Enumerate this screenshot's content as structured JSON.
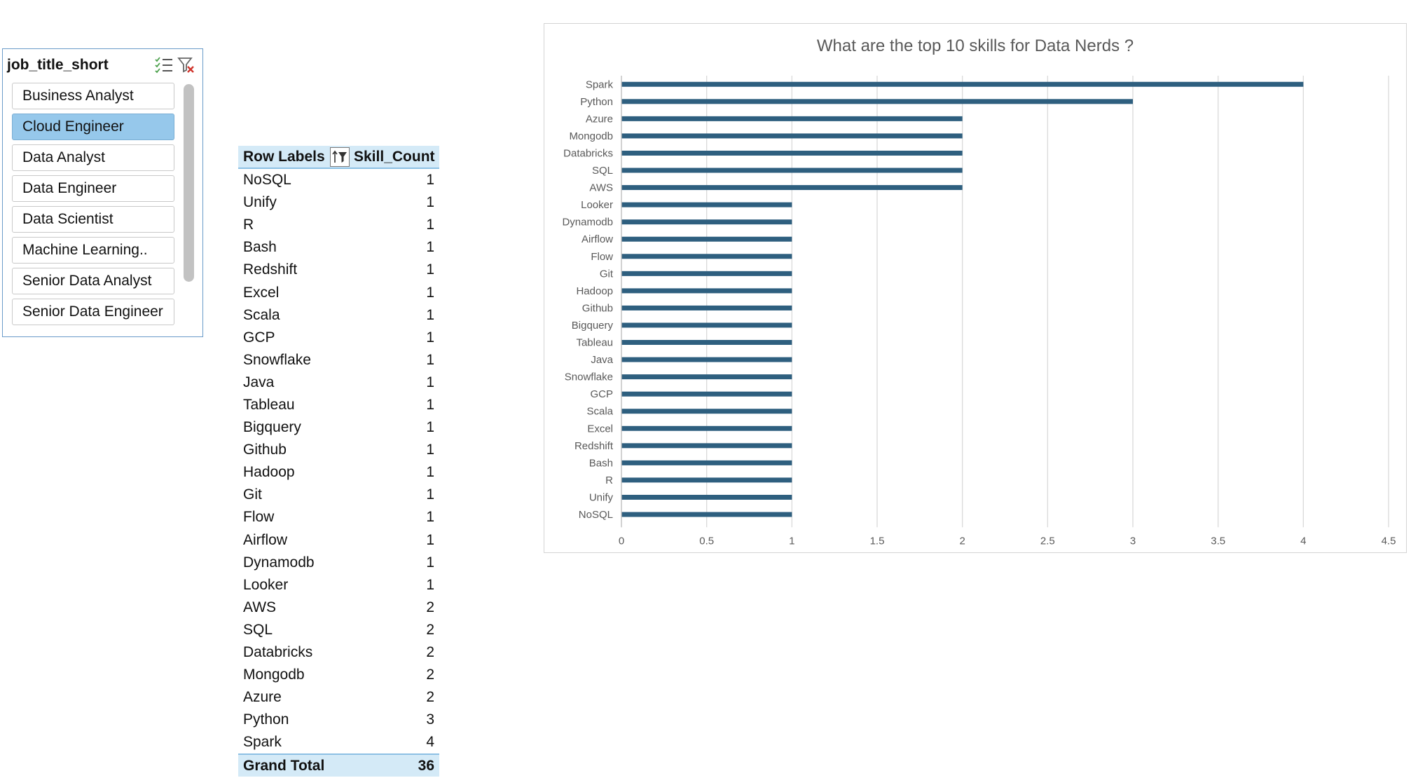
{
  "slicer": {
    "title": "job_title_short",
    "items": [
      {
        "label": "Business Analyst",
        "selected": false
      },
      {
        "label": "Cloud Engineer",
        "selected": true
      },
      {
        "label": "Data Analyst",
        "selected": false
      },
      {
        "label": "Data Engineer",
        "selected": false
      },
      {
        "label": "Data Scientist",
        "selected": false
      },
      {
        "label": "Machine Learning..",
        "selected": false
      },
      {
        "label": "Senior Data Analyst",
        "selected": false
      },
      {
        "label": "Senior Data Engineer",
        "selected": false
      }
    ]
  },
  "pivot": {
    "header_label": "Row Labels",
    "header_value": "Skill_Count",
    "rows": [
      {
        "label": "NoSQL",
        "value": 1
      },
      {
        "label": "Unify",
        "value": 1
      },
      {
        "label": "R",
        "value": 1
      },
      {
        "label": "Bash",
        "value": 1
      },
      {
        "label": "Redshift",
        "value": 1
      },
      {
        "label": "Excel",
        "value": 1
      },
      {
        "label": "Scala",
        "value": 1
      },
      {
        "label": "GCP",
        "value": 1
      },
      {
        "label": "Snowflake",
        "value": 1
      },
      {
        "label": "Java",
        "value": 1
      },
      {
        "label": "Tableau",
        "value": 1
      },
      {
        "label": "Bigquery",
        "value": 1
      },
      {
        "label": "Github",
        "value": 1
      },
      {
        "label": "Hadoop",
        "value": 1
      },
      {
        "label": "Git",
        "value": 1
      },
      {
        "label": "Flow",
        "value": 1
      },
      {
        "label": "Airflow",
        "value": 1
      },
      {
        "label": "Dynamodb",
        "value": 1
      },
      {
        "label": "Looker",
        "value": 1
      },
      {
        "label": "AWS",
        "value": 2
      },
      {
        "label": "SQL",
        "value": 2
      },
      {
        "label": "Databricks",
        "value": 2
      },
      {
        "label": "Mongodb",
        "value": 2
      },
      {
        "label": "Azure",
        "value": 2
      },
      {
        "label": "Python",
        "value": 3
      },
      {
        "label": "Spark",
        "value": 4
      }
    ],
    "total_label": "Grand Total",
    "total_value": 36
  },
  "chart_data": {
    "type": "bar",
    "orientation": "horizontal",
    "title": "What are the top 10 skills for Data Nerds ?",
    "categories": [
      "Spark",
      "Python",
      "Azure",
      "Mongodb",
      "Databricks",
      "SQL",
      "AWS",
      "Looker",
      "Dynamodb",
      "Airflow",
      "Flow",
      "Git",
      "Hadoop",
      "Github",
      "Bigquery",
      "Tableau",
      "Java",
      "Snowflake",
      "GCP",
      "Scala",
      "Excel",
      "Redshift",
      "Bash",
      "R",
      "Unify",
      "NoSQL"
    ],
    "values": [
      4,
      3,
      2,
      2,
      2,
      2,
      2,
      1,
      1,
      1,
      1,
      1,
      1,
      1,
      1,
      1,
      1,
      1,
      1,
      1,
      1,
      1,
      1,
      1,
      1,
      1
    ],
    "xlim": [
      0,
      4.5
    ],
    "xticks": [
      "0",
      "0.5",
      "1",
      "1.5",
      "2",
      "2.5",
      "3",
      "3.5",
      "4",
      "4.5"
    ],
    "grid": "vertical",
    "legend": "none",
    "bar_color": "#2e5f7f"
  },
  "colors": {
    "selected_item": "#96c8eb",
    "pivot_header": "#d4eaf7",
    "slicer_border": "#6a9bc9"
  }
}
